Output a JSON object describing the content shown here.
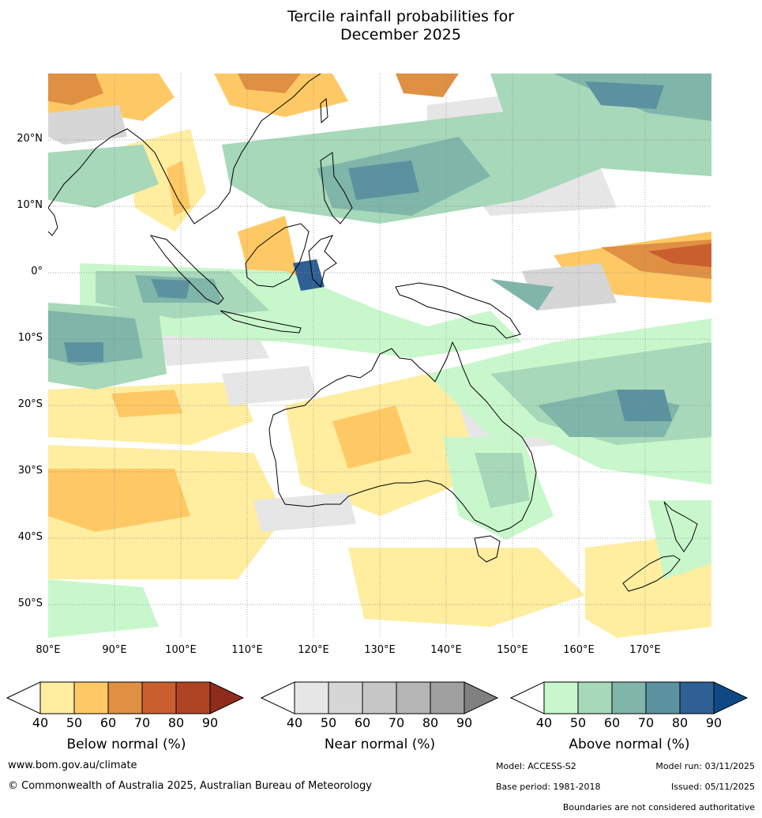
{
  "title_line1": "Tercile rainfall probabilities for",
  "title_line2": "December 2025",
  "lat_labels": [
    "20°N",
    "10°N",
    "0°",
    "10°S",
    "20°S",
    "30°S",
    "40°S",
    "50°S"
  ],
  "lon_labels": [
    "80°E",
    "90°E",
    "100°E",
    "110°E",
    "120°E",
    "130°E",
    "140°E",
    "150°E",
    "160°E",
    "170°E"
  ],
  "colorbars": [
    {
      "label": "Below normal (%)",
      "ticks": [
        "40",
        "50",
        "60",
        "70",
        "80",
        "90"
      ],
      "colors": [
        "#ffeda0",
        "#fec965",
        "#df9043",
        "#c95f2e",
        "#ad4525",
        "#8f2c1c"
      ]
    },
    {
      "label": "Near normal (%)",
      "ticks": [
        "40",
        "50",
        "60",
        "70",
        "80",
        "90"
      ],
      "colors": [
        "#e6e6e6",
        "#d6d6d6",
        "#c6c6c6",
        "#b5b5b5",
        "#a0a0a0",
        "#808080"
      ]
    },
    {
      "label": "Above normal (%)",
      "ticks": [
        "40",
        "50",
        "60",
        "70",
        "80",
        "90"
      ],
      "colors": [
        "#c9f7cc",
        "#a6d8b9",
        "#80b5aa",
        "#5c92a0",
        "#2f6094",
        "#0e4985"
      ]
    }
  ],
  "footer": {
    "website": "www.bom.gov.au/climate",
    "copyright": "© Commonwealth of Australia 2025, Australian Bureau of Meteorology",
    "model": "Model: ACCESS-S2",
    "model_run": "Model run: 03/11/2025",
    "base_period": "Base period: 1981-2018",
    "issued": "Issued: 05/11/2025",
    "disclaimer": "Boundaries are not considered authoritative"
  }
}
